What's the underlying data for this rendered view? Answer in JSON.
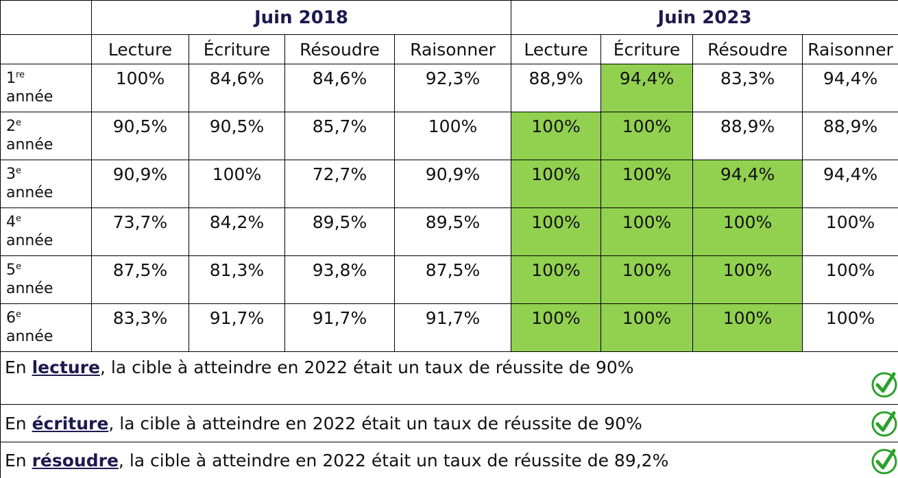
{
  "table": {
    "groups": [
      "Juin 2018",
      "Juin 2023"
    ],
    "columns": [
      "Lecture",
      "Écriture",
      "Résoudre",
      "Raisonner",
      "Lecture",
      "Écriture",
      "Résoudre",
      "Raisonner"
    ],
    "rows": [
      {
        "num": "1",
        "sup": "re",
        "word": "année",
        "values": [
          "100%",
          "84,6%",
          "84,6%",
          "92,3%",
          "88,9%",
          "94,4%",
          "83,3%",
          "94,4%"
        ],
        "highlight": [
          false,
          false,
          false,
          false,
          false,
          true,
          false,
          false
        ]
      },
      {
        "num": "2",
        "sup": "e",
        "word": "année",
        "values": [
          "90,5%",
          "90,5%",
          "85,7%",
          "100%",
          "100%",
          "100%",
          "88,9%",
          "88,9%"
        ],
        "highlight": [
          false,
          false,
          false,
          false,
          true,
          true,
          false,
          false
        ]
      },
      {
        "num": "3",
        "sup": "e",
        "word": "année",
        "values": [
          "90,9%",
          "100%",
          "72,7%",
          "90,9%",
          "100%",
          "100%",
          "94,4%",
          "94,4%"
        ],
        "highlight": [
          false,
          false,
          false,
          false,
          true,
          true,
          true,
          false
        ]
      },
      {
        "num": "4",
        "sup": "e",
        "word": "année",
        "values": [
          "73,7%",
          "84,2%",
          "89,5%",
          "89,5%",
          "100%",
          "100%",
          "100%",
          "100%"
        ],
        "highlight": [
          false,
          false,
          false,
          false,
          true,
          true,
          true,
          false
        ]
      },
      {
        "num": "5",
        "sup": "e",
        "word": "année",
        "values": [
          "87,5%",
          "81,3%",
          "93,8%",
          "87,5%",
          "100%",
          "100%",
          "100%",
          "100%"
        ],
        "highlight": [
          false,
          false,
          false,
          false,
          true,
          true,
          true,
          false
        ]
      },
      {
        "num": "6",
        "sup": "e",
        "word": "année",
        "values": [
          "83,3%",
          "91,7%",
          "91,7%",
          "91,7%",
          "100%",
          "100%",
          "100%",
          "100%"
        ],
        "highlight": [
          false,
          false,
          false,
          false,
          true,
          true,
          true,
          false
        ]
      }
    ],
    "highlight_color": "#92d050",
    "notes": [
      {
        "prefix": "En ",
        "keyword": "lecture",
        "rest": ", la cible à atteindre en 2022 était un taux de réussite de 90%"
      },
      {
        "prefix": "En ",
        "keyword": "écriture",
        "rest": ", la cible à atteindre en 2022 était un taux de réussite de 90%"
      },
      {
        "prefix": "En ",
        "keyword": "résoudre",
        "rest": ", la cible à atteindre en 2022 était un taux de réussite de 89,2%"
      }
    ]
  }
}
